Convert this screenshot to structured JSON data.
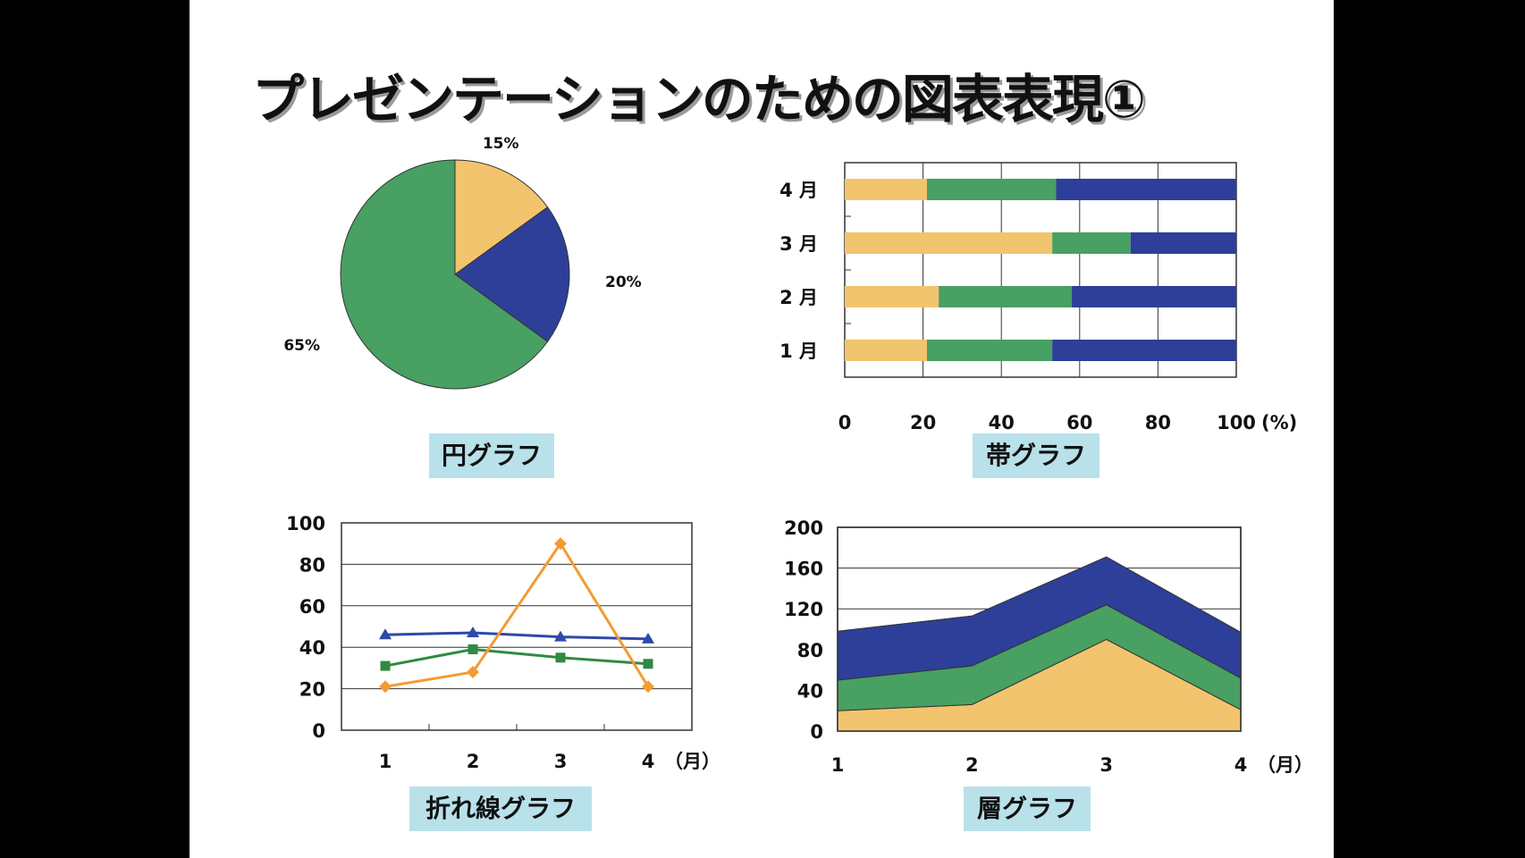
{
  "title": "プレゼンテーションのための図表表現①",
  "colors": {
    "yellow": "#f2c46d",
    "green": "#48a063",
    "blue": "#2d3f98",
    "orange": "#f39b34",
    "line_blue": "#2f49a8",
    "line_green": "#2f8a42"
  },
  "chart_data": [
    {
      "type": "pie",
      "caption": "円グラフ",
      "slices": [
        {
          "label": "15%",
          "value": 15,
          "color": "#f2c46d"
        },
        {
          "label": "20%",
          "value": 20,
          "color": "#2d3f98"
        },
        {
          "label": "65%",
          "value": 65,
          "color": "#48a063"
        }
      ]
    },
    {
      "type": "bar",
      "stacked": "percent",
      "orientation": "horizontal",
      "caption": "帯グラフ",
      "categories": [
        "4 月",
        "3 月",
        "2 月",
        "1 月"
      ],
      "series": [
        {
          "values": [
            21,
            53,
            24,
            21
          ],
          "color": "#f2c46d"
        },
        {
          "values": [
            33,
            20,
            34,
            32
          ],
          "color": "#48a063"
        },
        {
          "values": [
            46,
            27,
            42,
            47
          ],
          "color": "#2d3f98"
        }
      ],
      "x_ticks": [
        "0",
        "20",
        "40",
        "60",
        "80",
        "100"
      ],
      "x_unit": "(%)",
      "xlim": [
        0,
        100
      ],
      "grid": true
    },
    {
      "type": "line",
      "caption": "折れ線グラフ",
      "x": [
        "1",
        "2",
        "3",
        "4"
      ],
      "x_unit": "（月）",
      "series": [
        {
          "values": [
            46,
            47,
            45,
            44
          ],
          "color": "#2f49a8",
          "marker": "triangle"
        },
        {
          "values": [
            31,
            39,
            35,
            32
          ],
          "color": "#2f8a42",
          "marker": "square"
        },
        {
          "values": [
            21,
            28,
            90,
            21
          ],
          "color": "#f39b34",
          "marker": "diamond"
        }
      ],
      "y_ticks": [
        "0",
        "20",
        "40",
        "60",
        "80",
        "100"
      ],
      "ylim": [
        0,
        100
      ],
      "grid": true
    },
    {
      "type": "area",
      "stacked": true,
      "caption": "層グラフ",
      "x": [
        "1",
        "2",
        "3",
        "4"
      ],
      "x_unit": "（月）",
      "series": [
        {
          "values": [
            20,
            26,
            90,
            21
          ],
          "color": "#f2c46d"
        },
        {
          "values": [
            30,
            38,
            34,
            31
          ],
          "color": "#48a063"
        },
        {
          "values": [
            48,
            49,
            47,
            45
          ],
          "color": "#2d3f98"
        }
      ],
      "y_ticks": [
        "0",
        "40",
        "80",
        "120",
        "160",
        "200"
      ],
      "ylim": [
        0,
        200
      ],
      "grid": true
    }
  ]
}
